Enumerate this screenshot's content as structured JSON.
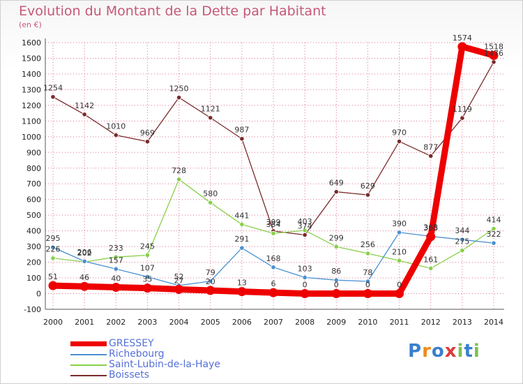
{
  "title": "Evolution du Montant de la Dette par Habitant",
  "unit_label": "(en €)",
  "brand": "Proxiti",
  "colors": {
    "title": "#c65877",
    "grid": "#e07090",
    "legend_text": "#5570d8"
  },
  "chart_data": {
    "type": "line",
    "x": [
      2000,
      2001,
      2002,
      2003,
      2004,
      2005,
      2006,
      2007,
      2008,
      2009,
      2010,
      2011,
      2012,
      2013,
      2014
    ],
    "ylim": [
      -100,
      1600
    ],
    "yticks": [
      -100,
      0,
      100,
      200,
      300,
      400,
      500,
      600,
      700,
      800,
      900,
      1000,
      1100,
      1200,
      1300,
      1400,
      1500,
      1600
    ],
    "grid": true,
    "legend_position": "bottom",
    "series": [
      {
        "name": "GRESSEY",
        "color": "#ee0000",
        "values": [
          51,
          46,
          40,
          35,
          27,
          20,
          13,
          6,
          0,
          0,
          0,
          0,
          363,
          1574,
          1518
        ]
      },
      {
        "name": "Richebourg",
        "color": "#4a90d0",
        "values": [
          295,
          206,
          157,
          107,
          52,
          79,
          291,
          168,
          103,
          86,
          78,
          390,
          365,
          344,
          322
        ]
      },
      {
        "name": "Saint-Lubin-de-la-Haye",
        "color": "#88d04a",
        "values": [
          226,
          202,
          233,
          245,
          728,
          580,
          441,
          384,
          403,
          299,
          256,
          210,
          161,
          275,
          414
        ]
      },
      {
        "name": "Boissets",
        "color": "#7a2b2b",
        "values": [
          1254,
          1142,
          1010,
          969,
          1250,
          1121,
          987,
          399,
          374,
          649,
          629,
          970,
          877,
          1119,
          1476
        ]
      }
    ]
  }
}
